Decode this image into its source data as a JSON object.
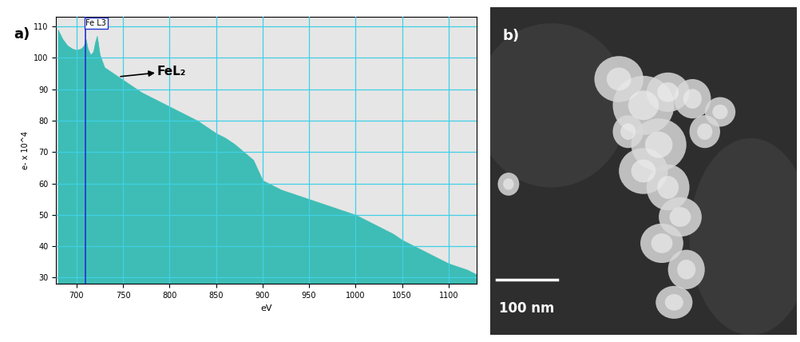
{
  "chart_data": {
    "type": "area",
    "x_label": "eV",
    "y_label": "e- x 10^4",
    "x": [
      680,
      685,
      690,
      695,
      700,
      705,
      708,
      710,
      712,
      715,
      718,
      720,
      722,
      725,
      730,
      740,
      750,
      760,
      770,
      780,
      790,
      800,
      810,
      820,
      830,
      840,
      850,
      860,
      870,
      880,
      890,
      900,
      910,
      920,
      930,
      940,
      950,
      960,
      970,
      980,
      990,
      1000,
      1010,
      1020,
      1030,
      1040,
      1050,
      1060,
      1070,
      1080,
      1090,
      1100,
      1110,
      1120,
      1130
    ],
    "values": [
      109,
      106,
      104,
      103,
      102.5,
      103,
      104,
      106,
      103,
      101,
      102,
      105,
      107,
      101,
      97,
      95,
      93,
      91,
      89,
      87.5,
      86,
      84.5,
      83,
      81.5,
      80,
      78,
      76,
      74.5,
      72.5,
      70,
      67.5,
      61,
      59.5,
      58,
      57,
      56,
      55,
      54,
      53,
      52,
      51,
      50,
      48.5,
      47,
      45.5,
      44,
      42,
      40.5,
      39,
      37.5,
      36,
      34.5,
      33.5,
      32.5,
      31
    ],
    "color": "#3dbdb5",
    "xlim": [
      678,
      1130
    ],
    "ylim": [
      28,
      113
    ],
    "xticks": [
      700,
      750,
      800,
      850,
      900,
      950,
      1000,
      1050,
      1100
    ],
    "yticks": [
      30,
      40,
      50,
      60,
      70,
      80,
      90,
      100,
      110
    ],
    "grid": true,
    "panel_label": "a)",
    "annotations": [
      {
        "text": "Fe L3",
        "x": 710,
        "y": 111
      },
      {
        "text": "FeL₂",
        "x": 745,
        "y": 94
      }
    ]
  },
  "image": {
    "panel_label": "b)",
    "scale_bar": "100 nm"
  }
}
